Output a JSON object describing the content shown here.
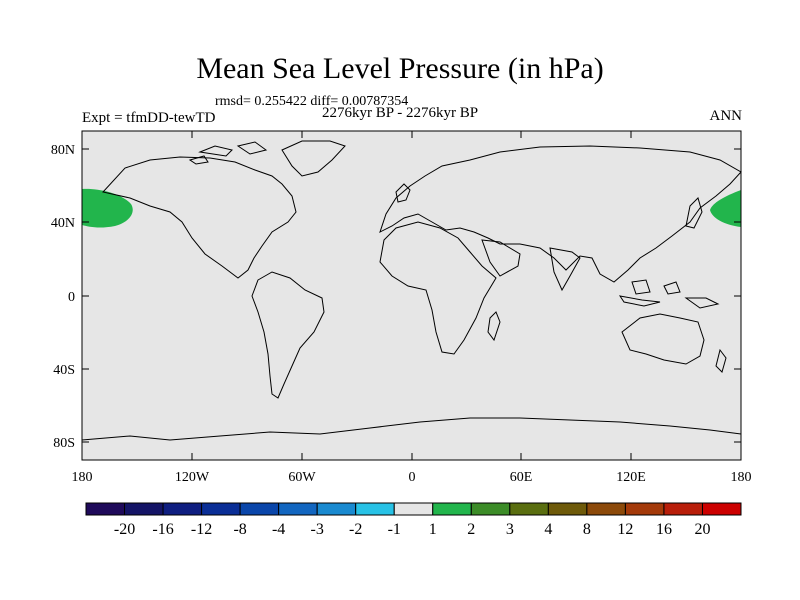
{
  "title": "Mean Sea Level Pressure (in hPa)",
  "stats": "rmsd= 0.255422 diff= 0.00787354",
  "period": "2276kyr BP - 2276kyr BP",
  "experiment": "Expt = tfmDD-tewTD",
  "season": "ANN",
  "lat_labels": [
    "80N",
    "40N",
    "0",
    "40S",
    "80S"
  ],
  "lon_labels": [
    "180",
    "120W",
    "60W",
    "0",
    "60E",
    "120E",
    "180"
  ],
  "colorbar": {
    "labels": [
      "-20",
      "-16",
      "-12",
      "-8",
      "-4",
      "-3",
      "-2",
      "-1",
      "1",
      "2",
      "3",
      "4",
      "8",
      "12",
      "16",
      "20"
    ],
    "colors": [
      "#1f0a5a",
      "#141466",
      "#0f1e80",
      "#0a2e96",
      "#0a46aa",
      "#1266c0",
      "#1a8ad0",
      "#28c2e6",
      "#e6e6e6",
      "#22b54c",
      "#3c8c28",
      "#5a6e10",
      "#6e5a0a",
      "#8c4a0a",
      "#a43a0a",
      "#b81e0a",
      "#cc0000"
    ]
  },
  "colors": {
    "background": "#e6e6e6",
    "anomaly": "#22b54c"
  }
}
